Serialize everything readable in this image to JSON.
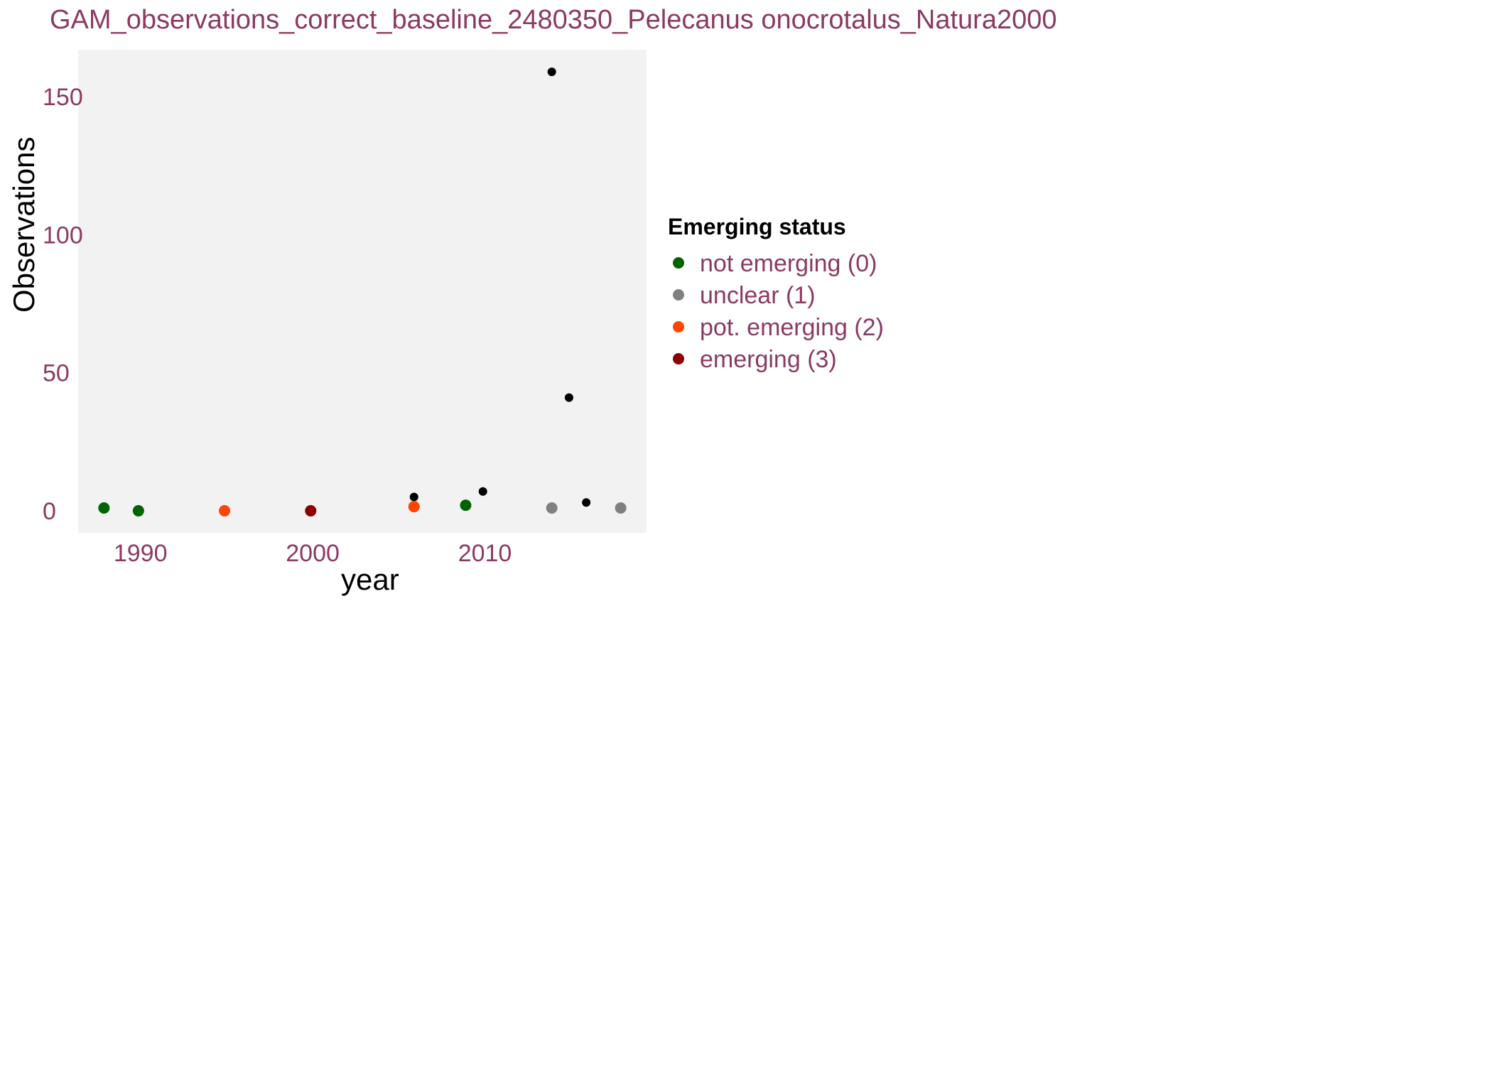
{
  "chart_data": {
    "type": "scatter",
    "title": "GAM_observations_correct_baseline_2480350_Pelecanus onocrotalus_Natura2000",
    "xlabel": "year",
    "ylabel": "Observations",
    "xlim": [
      1986.5,
      2019.5
    ],
    "ylim": [
      -8,
      167
    ],
    "x_ticks": [
      1990,
      2000,
      2010
    ],
    "y_ticks": [
      0,
      50,
      100,
      150
    ],
    "legend_title": "Emerging status",
    "legend": [
      {
        "label": "not emerging (0)",
        "color": "#006400"
      },
      {
        "label": "unclear (1)",
        "color": "#808080"
      },
      {
        "label": "pot. emerging (2)",
        "color": "#ff4500"
      },
      {
        "label": "emerging (3)",
        "color": "#8b0000"
      }
    ],
    "observations": [
      {
        "x": 1988,
        "y": 1
      },
      {
        "x": 2006,
        "y": 5
      },
      {
        "x": 2010,
        "y": 7
      },
      {
        "x": 2014,
        "y": 159
      },
      {
        "x": 2015,
        "y": 41
      },
      {
        "x": 2016,
        "y": 3
      }
    ],
    "fitted": [
      {
        "x": 1988,
        "y": 1,
        "status": 0
      },
      {
        "x": 1990,
        "y": 0,
        "status": 0
      },
      {
        "x": 1995,
        "y": 0,
        "status": 2
      },
      {
        "x": 2000,
        "y": 0,
        "status": 3
      },
      {
        "x": 2006,
        "y": 1.5,
        "status": 2
      },
      {
        "x": 2009,
        "y": 2,
        "status": 0
      },
      {
        "x": 2014,
        "y": 1,
        "status": 1
      },
      {
        "x": 2018,
        "y": 1,
        "status": 1
      }
    ]
  }
}
